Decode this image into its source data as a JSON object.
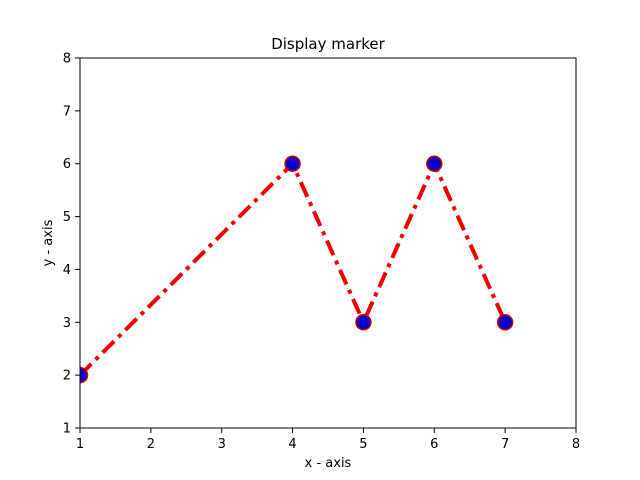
{
  "chart_data": {
    "type": "line",
    "title": "Display marker",
    "xlabel": "x - axis",
    "ylabel": "y - axis",
    "xlim": [
      1,
      8
    ],
    "ylim": [
      1,
      8
    ],
    "xticks": [
      1,
      2,
      3,
      4,
      5,
      6,
      7,
      8
    ],
    "yticks": [
      1,
      2,
      3,
      4,
      5,
      6,
      7,
      8
    ],
    "grid": false,
    "series": [
      {
        "x": [
          1,
          4,
          5,
          6,
          7
        ],
        "y": [
          2,
          6,
          3,
          6,
          3
        ],
        "line_color": "#ee0000",
        "line_style": "dashdot",
        "marker": "circle",
        "marker_face_color": "#0000cc",
        "marker_edge_color": "#cc0000"
      }
    ]
  }
}
